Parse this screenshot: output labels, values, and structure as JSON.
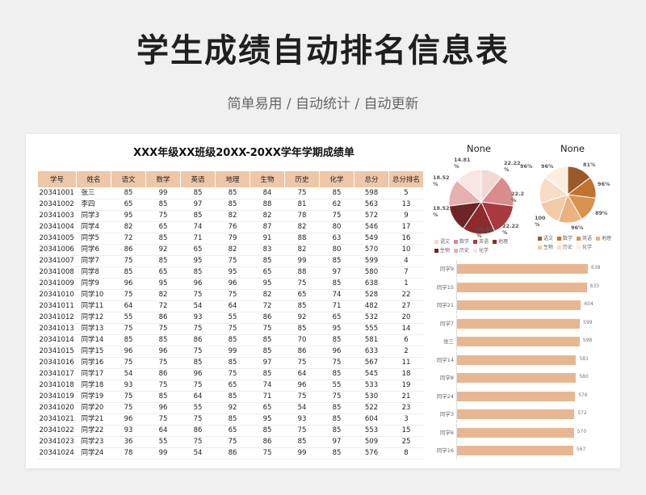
{
  "header": {
    "title": "学生成绩自动排名信息表",
    "subtitle": "简单易用 / 自动统计 / 自动更新"
  },
  "sheet": {
    "title": "XXX年级XX班级20XX-20XX学年学期成绩单",
    "columns": [
      "学号",
      "姓名",
      "语文",
      "数学",
      "英语",
      "地理",
      "生物",
      "历史",
      "化学",
      "总分",
      "总分排名"
    ],
    "rows": [
      [
        "20341001",
        "张三",
        "85",
        "99",
        "85",
        "85",
        "84",
        "75",
        "85",
        "598",
        "5"
      ],
      [
        "20341002",
        "李四",
        "65",
        "85",
        "97",
        "85",
        "88",
        "81",
        "62",
        "563",
        "13"
      ],
      [
        "20341003",
        "同学3",
        "95",
        "75",
        "85",
        "82",
        "82",
        "78",
        "75",
        "572",
        "9"
      ],
      [
        "20341004",
        "同学4",
        "82",
        "65",
        "74",
        "76",
        "87",
        "82",
        "80",
        "546",
        "17"
      ],
      [
        "20341005",
        "同学5",
        "72",
        "85",
        "71",
        "79",
        "91",
        "88",
        "63",
        "549",
        "16"
      ],
      [
        "20341006",
        "同学6",
        "86",
        "92",
        "65",
        "82",
        "83",
        "82",
        "80",
        "570",
        "10"
      ],
      [
        "20341007",
        "同学7",
        "75",
        "85",
        "95",
        "75",
        "85",
        "99",
        "85",
        "599",
        "4"
      ],
      [
        "20341008",
        "同学8",
        "85",
        "65",
        "85",
        "95",
        "65",
        "88",
        "97",
        "580",
        "7"
      ],
      [
        "20341009",
        "同学9",
        "96",
        "95",
        "96",
        "96",
        "95",
        "75",
        "85",
        "638",
        "1"
      ],
      [
        "20341010",
        "同学10",
        "75",
        "82",
        "75",
        "75",
        "82",
        "65",
        "74",
        "528",
        "22"
      ],
      [
        "20341011",
        "同学11",
        "64",
        "72",
        "54",
        "64",
        "72",
        "85",
        "71",
        "482",
        "27"
      ],
      [
        "20341012",
        "同学12",
        "55",
        "86",
        "93",
        "55",
        "86",
        "92",
        "65",
        "532",
        "20"
      ],
      [
        "20341013",
        "同学13",
        "75",
        "75",
        "75",
        "75",
        "75",
        "85",
        "95",
        "555",
        "14"
      ],
      [
        "20341014",
        "同学14",
        "85",
        "85",
        "86",
        "85",
        "85",
        "70",
        "85",
        "581",
        "6"
      ],
      [
        "20341015",
        "同学15",
        "96",
        "96",
        "75",
        "99",
        "85",
        "86",
        "96",
        "633",
        "2"
      ],
      [
        "20341016",
        "同学16",
        "75",
        "75",
        "85",
        "85",
        "97",
        "75",
        "75",
        "567",
        "11"
      ],
      [
        "20341017",
        "同学17",
        "54",
        "86",
        "96",
        "75",
        "85",
        "64",
        "85",
        "545",
        "18"
      ],
      [
        "20341018",
        "同学18",
        "93",
        "75",
        "75",
        "65",
        "74",
        "96",
        "55",
        "533",
        "19"
      ],
      [
        "20341019",
        "同学19",
        "75",
        "85",
        "64",
        "85",
        "71",
        "75",
        "75",
        "530",
        "21"
      ],
      [
        "20341020",
        "同学20",
        "75",
        "96",
        "55",
        "92",
        "65",
        "54",
        "85",
        "522",
        "23"
      ],
      [
        "20341021",
        "同学21",
        "96",
        "75",
        "75",
        "85",
        "95",
        "93",
        "85",
        "604",
        "3"
      ],
      [
        "20341022",
        "同学22",
        "93",
        "64",
        "86",
        "65",
        "85",
        "75",
        "85",
        "553",
        "15"
      ],
      [
        "20341023",
        "同学23",
        "36",
        "55",
        "75",
        "75",
        "86",
        "85",
        "97",
        "509",
        "25"
      ],
      [
        "20341024",
        "同学24",
        "78",
        "99",
        "54",
        "86",
        "75",
        "99",
        "85",
        "576",
        "8"
      ]
    ]
  },
  "pie_left": {
    "title": "None",
    "labels": [
      "14.81 %",
      "22.22 %",
      "22.2 %",
      "22.22 %",
      "18.52 %",
      "18.52 %",
      "18.52 %"
    ],
    "legend": [
      "语文",
      "数学",
      "英语",
      "地理",
      "生物",
      "历史",
      "化学"
    ],
    "colors": [
      "#f4d8d6",
      "#d98c8c",
      "#a83a3f",
      "#8c2a2c",
      "#6e2528",
      "#e4b1b0",
      "#f8e6e4"
    ]
  },
  "pie_right": {
    "title": "None",
    "labels": [
      "96%",
      "81%",
      "96%",
      "89%",
      "96%",
      "100 %",
      "96%"
    ],
    "legend": [
      "语文",
      "数学",
      "英语",
      "地理",
      "生物",
      "历史",
      "化学"
    ],
    "colors": [
      "#9a5a28",
      "#c0732f",
      "#d9914e",
      "#e9b27e",
      "#f1cba6",
      "#f7ddc5",
      "#fbeee1"
    ]
  },
  "chart_data": {
    "type": "bar",
    "categories": [
      "同学9",
      "同学15",
      "同学21",
      "同学7",
      "张三",
      "同学14",
      "同学8",
      "同学24",
      "同学3",
      "同学6",
      "同学16"
    ],
    "values": [
      638,
      633,
      604,
      599,
      598,
      581,
      580,
      576,
      572,
      570,
      567
    ],
    "xlim": [
      0,
      700
    ]
  }
}
